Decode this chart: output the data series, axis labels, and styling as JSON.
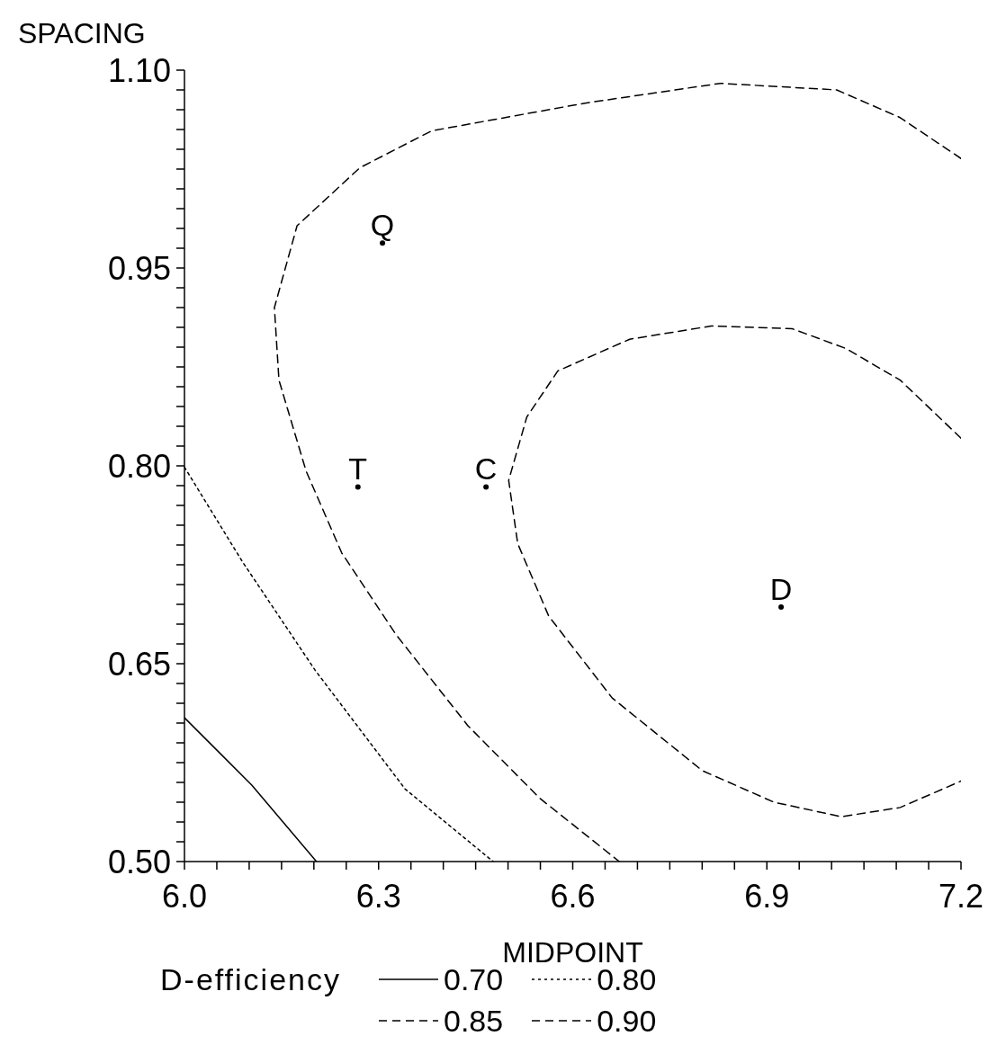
{
  "chart_data": {
    "type": "line",
    "xlabel": "MIDPOINT",
    "ylabel": "SPACING",
    "legend_title": "D-efficiency",
    "legend": "bottom",
    "grid": false,
    "xlim": [
      6.0,
      7.2
    ],
    "ylim": [
      0.5,
      1.1
    ],
    "xticks": [
      {
        "value": 6.0,
        "label": "6.0"
      },
      {
        "value": 6.05,
        "label": null
      },
      {
        "value": 6.1,
        "label": null
      },
      {
        "value": 6.15,
        "label": null
      },
      {
        "value": 6.2,
        "label": null
      },
      {
        "value": 6.25,
        "label": null
      },
      {
        "value": 6.3,
        "label": "6.3"
      },
      {
        "value": 6.35,
        "label": null
      },
      {
        "value": 6.4,
        "label": null
      },
      {
        "value": 6.45,
        "label": null
      },
      {
        "value": 6.5,
        "label": null
      },
      {
        "value": 6.55,
        "label": null
      },
      {
        "value": 6.6,
        "label": "6.6"
      },
      {
        "value": 6.65,
        "label": null
      },
      {
        "value": 6.7,
        "label": null
      },
      {
        "value": 6.75,
        "label": null
      },
      {
        "value": 6.8,
        "label": null
      },
      {
        "value": 6.85,
        "label": null
      },
      {
        "value": 6.9,
        "label": "6.9"
      },
      {
        "value": 6.95,
        "label": null
      },
      {
        "value": 7.0,
        "label": null
      },
      {
        "value": 7.05,
        "label": null
      },
      {
        "value": 7.1,
        "label": null
      },
      {
        "value": 7.15,
        "label": null
      },
      {
        "value": 7.2,
        "label": "7.2"
      }
    ],
    "yticks": [
      {
        "value": 0.5,
        "label": "0.50"
      },
      {
        "value": 0.515,
        "label": null
      },
      {
        "value": 0.53,
        "label": null
      },
      {
        "value": 0.545,
        "label": null
      },
      {
        "value": 0.56,
        "label": null
      },
      {
        "value": 0.575,
        "label": null
      },
      {
        "value": 0.59,
        "label": null
      },
      {
        "value": 0.605,
        "label": null
      },
      {
        "value": 0.62,
        "label": null
      },
      {
        "value": 0.635,
        "label": null
      },
      {
        "value": 0.65,
        "label": "0.65"
      },
      {
        "value": 0.665,
        "label": null
      },
      {
        "value": 0.68,
        "label": null
      },
      {
        "value": 0.695,
        "label": null
      },
      {
        "value": 0.71,
        "label": null
      },
      {
        "value": 0.725,
        "label": null
      },
      {
        "value": 0.74,
        "label": null
      },
      {
        "value": 0.755,
        "label": null
      },
      {
        "value": 0.77,
        "label": null
      },
      {
        "value": 0.785,
        "label": null
      },
      {
        "value": 0.8,
        "label": "0.80"
      },
      {
        "value": 0.815,
        "label": null
      },
      {
        "value": 0.83,
        "label": null
      },
      {
        "value": 0.845,
        "label": null
      },
      {
        "value": 0.86,
        "label": null
      },
      {
        "value": 0.875,
        "label": null
      },
      {
        "value": 0.89,
        "label": null
      },
      {
        "value": 0.905,
        "label": null
      },
      {
        "value": 0.92,
        "label": null
      },
      {
        "value": 0.935,
        "label": null
      },
      {
        "value": 0.95,
        "label": "0.95"
      },
      {
        "value": 0.965,
        "label": null
      },
      {
        "value": 0.98,
        "label": null
      },
      {
        "value": 0.995,
        "label": null
      },
      {
        "value": 1.01,
        "label": null
      },
      {
        "value": 1.025,
        "label": null
      },
      {
        "value": 1.04,
        "label": null
      },
      {
        "value": 1.055,
        "label": null
      },
      {
        "value": 1.07,
        "label": null
      },
      {
        "value": 1.085,
        "label": null
      },
      {
        "value": 1.1,
        "label": "1.10"
      }
    ],
    "series": [
      {
        "name": "0.70",
        "color": "#000000",
        "line_style": "solid",
        "x": [
          6.0,
          6.104,
          6.204
        ],
        "values": [
          0.609,
          0.558,
          0.5
        ]
      },
      {
        "name": "0.80",
        "color": "#000000",
        "line_style": "dotted",
        "x": [
          6.0,
          6.09,
          6.202,
          6.341,
          6.477
        ],
        "values": [
          0.799,
          0.727,
          0.645,
          0.555,
          0.5
        ]
      },
      {
        "name": "0.85",
        "color": "#000000",
        "line_style": "dashed",
        "x": [
          7.2,
          7.106,
          7.008,
          6.828,
          6.619,
          6.382,
          6.271,
          6.174,
          6.139,
          6.146,
          6.188,
          6.243,
          6.327,
          6.438,
          6.549,
          6.672
        ],
        "values": [
          1.033,
          1.064,
          1.085,
          1.09,
          1.075,
          1.054,
          1.026,
          0.982,
          0.92,
          0.865,
          0.796,
          0.734,
          0.672,
          0.603,
          0.548,
          0.5
        ]
      },
      {
        "name": "0.90",
        "color": "#000000",
        "line_style": "dashed",
        "x": [
          7.2,
          7.106,
          7.022,
          6.939,
          6.814,
          6.688,
          6.577,
          6.529,
          6.501,
          6.515,
          6.563,
          6.661,
          6.8,
          6.911,
          7.015,
          7.106,
          7.2
        ],
        "values": [
          0.821,
          0.865,
          0.889,
          0.904,
          0.906,
          0.896,
          0.872,
          0.837,
          0.789,
          0.741,
          0.686,
          0.624,
          0.569,
          0.545,
          0.534,
          0.541,
          0.561
        ]
      },
      {
        "type": "scatter",
        "color": "#000000",
        "marker": "circle",
        "x": [
          6.306,
          6.268,
          6.466,
          6.922
        ],
        "values": [
          0.969,
          0.784,
          0.784,
          0.693
        ],
        "value_labels": [
          "Q",
          "T",
          "C",
          "D"
        ]
      }
    ]
  }
}
